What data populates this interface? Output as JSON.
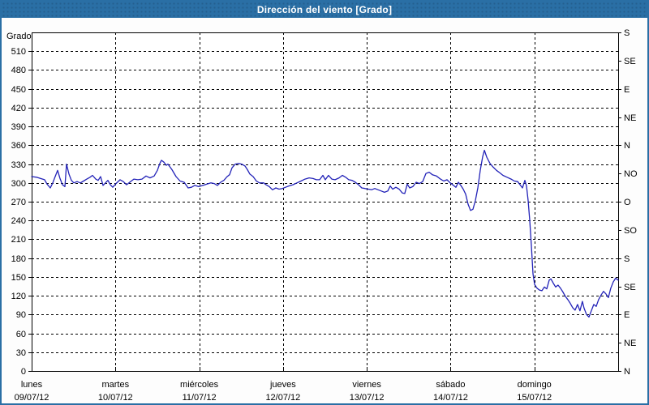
{
  "title": "Dirección del viento [Grado]",
  "colors": {
    "title_bar": "#2a6fa5",
    "title_text": "#ffffff",
    "frame_border": "#2a6fa5",
    "line": "#2323b8",
    "grid": "#000000",
    "text": "#000000",
    "plot_bg": "#ffffff"
  },
  "chart_data": {
    "type": "line",
    "title": "Dirección del viento [Grado]",
    "ylabel": "Grado",
    "xlabel": "",
    "ylim": [
      0,
      540
    ],
    "x_range_days": 7,
    "grid": "dashed horizontal every 30 degrees, dashed vertical at each day boundary",
    "legend": "none",
    "y_ticks_left": [
      0,
      30,
      60,
      90,
      120,
      150,
      180,
      210,
      240,
      270,
      300,
      330,
      360,
      390,
      420,
      450,
      480,
      510
    ],
    "y_ticks_right": [
      {
        "value": 540,
        "label": "S"
      },
      {
        "value": 495,
        "label": "SE"
      },
      {
        "value": 450,
        "label": "E"
      },
      {
        "value": 405,
        "label": "NE"
      },
      {
        "value": 360,
        "label": "N"
      },
      {
        "value": 315,
        "label": "NO"
      },
      {
        "value": 270,
        "label": "O"
      },
      {
        "value": 225,
        "label": "SO"
      },
      {
        "value": 180,
        "label": "S"
      },
      {
        "value": 135,
        "label": "SE"
      },
      {
        "value": 90,
        "label": "E"
      },
      {
        "value": 45,
        "label": "NE"
      },
      {
        "value": 0,
        "label": "N"
      }
    ],
    "x_ticks": [
      {
        "name": "lunes",
        "date": "09/07/12"
      },
      {
        "name": "martes",
        "date": "10/07/12"
      },
      {
        "name": "miércoles",
        "date": "11/07/12"
      },
      {
        "name": "jueves",
        "date": "12/07/12"
      },
      {
        "name": "viernes",
        "date": "13/07/12"
      },
      {
        "name": "sábado",
        "date": "14/07/12"
      },
      {
        "name": "domingo",
        "date": "15/07/12"
      }
    ],
    "series": [
      {
        "name": "Dirección del viento (grados)",
        "color": "#2323b8",
        "points": [
          [
            0,
            310
          ],
          [
            0.058,
            309
          ],
          [
            0.107,
            307
          ],
          [
            0.155,
            305
          ],
          [
            0.184,
            298
          ],
          [
            0.223,
            292
          ],
          [
            0.252,
            300
          ],
          [
            0.281,
            310
          ],
          [
            0.31,
            320
          ],
          [
            0.339,
            307
          ],
          [
            0.368,
            297
          ],
          [
            0.397,
            294
          ],
          [
            0.416,
            330
          ],
          [
            0.445,
            314
          ],
          [
            0.474,
            304
          ],
          [
            0.503,
            300
          ],
          [
            0.542,
            302
          ],
          [
            0.581,
            300
          ],
          [
            0.62,
            303
          ],
          [
            0.658,
            306
          ],
          [
            0.697,
            309
          ],
          [
            0.726,
            312
          ],
          [
            0.765,
            306
          ],
          [
            0.794,
            304
          ],
          [
            0.823,
            310
          ],
          [
            0.852,
            296
          ],
          [
            0.881,
            300
          ],
          [
            0.91,
            304
          ],
          [
            0.939,
            297
          ],
          [
            0.968,
            293
          ],
          [
            1.007,
            299
          ],
          [
            1.055,
            305
          ],
          [
            1.094,
            302
          ],
          [
            1.133,
            297
          ],
          [
            1.171,
            301
          ],
          [
            1.22,
            306
          ],
          [
            1.268,
            305
          ],
          [
            1.317,
            306
          ],
          [
            1.365,
            311
          ],
          [
            1.413,
            308
          ],
          [
            1.462,
            311
          ],
          [
            1.501,
            320
          ],
          [
            1.53,
            331
          ],
          [
            1.549,
            336
          ],
          [
            1.578,
            333
          ],
          [
            1.607,
            328
          ],
          [
            1.627,
            330
          ],
          [
            1.675,
            321
          ],
          [
            1.723,
            310
          ],
          [
            1.772,
            303
          ],
          [
            1.82,
            301
          ],
          [
            1.868,
            292
          ],
          [
            1.907,
            293
          ],
          [
            1.946,
            296
          ],
          [
            1.994,
            294
          ],
          [
            2.043,
            296
          ],
          [
            2.091,
            298
          ],
          [
            2.14,
            300
          ],
          [
            2.178,
            299
          ],
          [
            2.217,
            296
          ],
          [
            2.256,
            301
          ],
          [
            2.294,
            304
          ],
          [
            2.333,
            310
          ],
          [
            2.362,
            313
          ],
          [
            2.391,
            324
          ],
          [
            2.43,
            330
          ],
          [
            2.469,
            331
          ],
          [
            2.507,
            330
          ],
          [
            2.546,
            327
          ],
          [
            2.575,
            321
          ],
          [
            2.604,
            314
          ],
          [
            2.643,
            310
          ],
          [
            2.682,
            303
          ],
          [
            2.72,
            300
          ],
          [
            2.769,
            300
          ],
          [
            2.798,
            297
          ],
          [
            2.837,
            294
          ],
          [
            2.875,
            289
          ],
          [
            2.914,
            292
          ],
          [
            2.953,
            290
          ],
          [
            2.992,
            291
          ],
          [
            3.03,
            293
          ],
          [
            3.069,
            295
          ],
          [
            3.118,
            297
          ],
          [
            3.166,
            300
          ],
          [
            3.214,
            303
          ],
          [
            3.263,
            306
          ],
          [
            3.311,
            308
          ],
          [
            3.359,
            307
          ],
          [
            3.398,
            305
          ],
          [
            3.437,
            305
          ],
          [
            3.476,
            312
          ],
          [
            3.505,
            305
          ],
          [
            3.543,
            312
          ],
          [
            3.582,
            306
          ],
          [
            3.621,
            305
          ],
          [
            3.669,
            308
          ],
          [
            3.708,
            312
          ],
          [
            3.747,
            309
          ],
          [
            3.785,
            305
          ],
          [
            3.824,
            304
          ],
          [
            3.863,
            301
          ],
          [
            3.902,
            297
          ],
          [
            3.94,
            292
          ],
          [
            3.979,
            291
          ],
          [
            4.018,
            290
          ],
          [
            4.057,
            289
          ],
          [
            4.095,
            291
          ],
          [
            4.134,
            289
          ],
          [
            4.173,
            287
          ],
          [
            4.211,
            285
          ],
          [
            4.25,
            287
          ],
          [
            4.279,
            295
          ],
          [
            4.308,
            290
          ],
          [
            4.347,
            293
          ],
          [
            4.386,
            290
          ],
          [
            4.424,
            284
          ],
          [
            4.453,
            283
          ],
          [
            4.483,
            298
          ],
          [
            4.512,
            292
          ],
          [
            4.55,
            294
          ],
          [
            4.589,
            301
          ],
          [
            4.628,
            299
          ],
          [
            4.667,
            302
          ],
          [
            4.705,
            315
          ],
          [
            4.744,
            317
          ],
          [
            4.783,
            313
          ],
          [
            4.831,
            311
          ],
          [
            4.88,
            306
          ],
          [
            4.918,
            303
          ],
          [
            4.957,
            305
          ],
          [
            4.996,
            300
          ],
          [
            5.035,
            296
          ],
          [
            5.064,
            293
          ],
          [
            5.093,
            301
          ],
          [
            5.122,
            296
          ],
          [
            5.151,
            290
          ],
          [
            5.18,
            282
          ],
          [
            5.209,
            266
          ],
          [
            5.238,
            256
          ],
          [
            5.267,
            258
          ],
          [
            5.296,
            272
          ],
          [
            5.325,
            292
          ],
          [
            5.354,
            320
          ],
          [
            5.383,
            342
          ],
          [
            5.403,
            352
          ],
          [
            5.432,
            341
          ],
          [
            5.47,
            331
          ],
          [
            5.509,
            325
          ],
          [
            5.548,
            320
          ],
          [
            5.587,
            316
          ],
          [
            5.625,
            312
          ],
          [
            5.674,
            309
          ],
          [
            5.722,
            306
          ],
          [
            5.761,
            303
          ],
          [
            5.8,
            302
          ],
          [
            5.829,
            297
          ],
          [
            5.858,
            292
          ],
          [
            5.887,
            304
          ],
          [
            5.906,
            295
          ],
          [
            5.925,
            272
          ],
          [
            5.945,
            240
          ],
          [
            5.964,
            200
          ],
          [
            5.983,
            155
          ],
          [
            6.003,
            138
          ],
          [
            6.032,
            132
          ],
          [
            6.061,
            129
          ],
          [
            6.09,
            128
          ],
          [
            6.119,
            134
          ],
          [
            6.148,
            131
          ],
          [
            6.177,
            145
          ],
          [
            6.196,
            147
          ],
          [
            6.225,
            140
          ],
          [
            6.254,
            134
          ],
          [
            6.283,
            137
          ],
          [
            6.312,
            132
          ],
          [
            6.341,
            126
          ],
          [
            6.37,
            119
          ],
          [
            6.399,
            114
          ],
          [
            6.428,
            108
          ],
          [
            6.457,
            101
          ],
          [
            6.486,
            97
          ],
          [
            6.515,
            106
          ],
          [
            6.544,
            96
          ],
          [
            6.573,
            111
          ],
          [
            6.593,
            100
          ],
          [
            6.622,
            90
          ],
          [
            6.651,
            86
          ],
          [
            6.68,
            96
          ],
          [
            6.709,
            106
          ],
          [
            6.738,
            103
          ],
          [
            6.767,
            114
          ],
          [
            6.796,
            121
          ],
          [
            6.825,
            127
          ],
          [
            6.854,
            123
          ],
          [
            6.883,
            117
          ],
          [
            6.912,
            132
          ],
          [
            6.941,
            142
          ],
          [
            6.97,
            148
          ],
          [
            7,
            145
          ]
        ]
      }
    ]
  }
}
